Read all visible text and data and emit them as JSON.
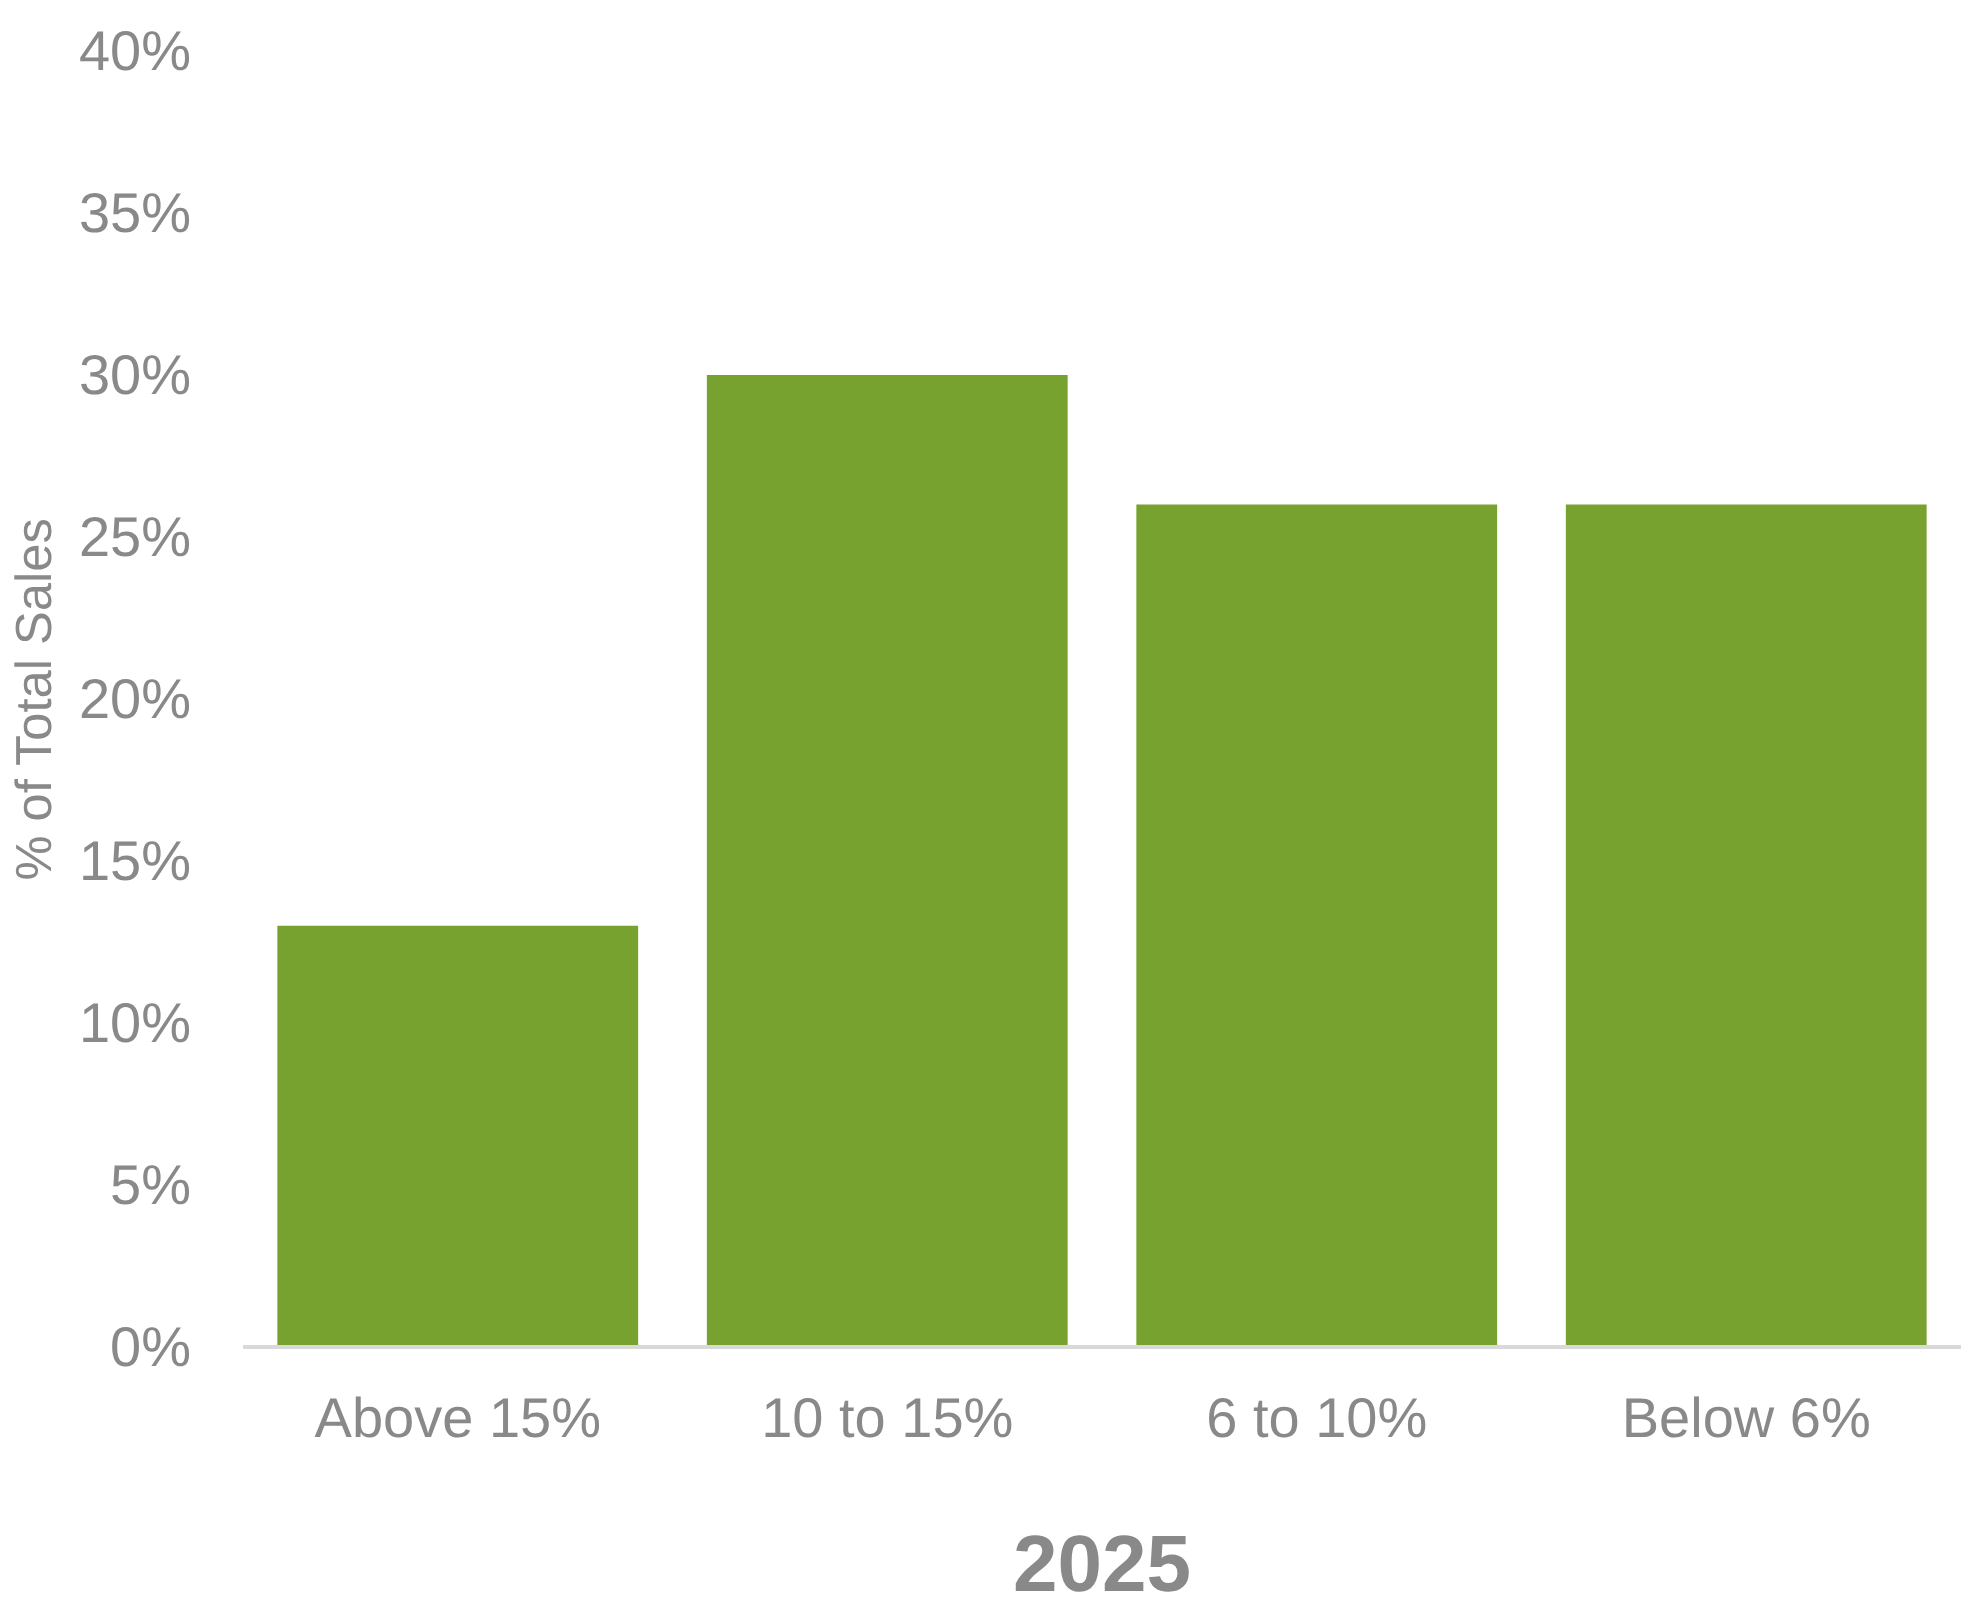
{
  "chart_data": {
    "type": "bar",
    "categories": [
      "Above 15%",
      "10 to 15%",
      "6 to 10%",
      "Below 6%"
    ],
    "values": [
      13,
      30,
      26,
      26
    ],
    "color": "#78a22f",
    "xlabel": "2025",
    "ylabel": "% of Total Sales",
    "ylim": [
      0,
      40
    ],
    "yticks": [
      {
        "value": 0,
        "label": "0%"
      },
      {
        "value": 5,
        "label": "5%"
      },
      {
        "value": 10,
        "label": "10%"
      },
      {
        "value": 15,
        "label": "15%"
      },
      {
        "value": 20,
        "label": "20%"
      },
      {
        "value": 25,
        "label": "25%"
      },
      {
        "value": 30,
        "label": "30%"
      },
      {
        "value": 35,
        "label": "35%"
      },
      {
        "value": 40,
        "label": "40%"
      }
    ],
    "grid": false
  }
}
